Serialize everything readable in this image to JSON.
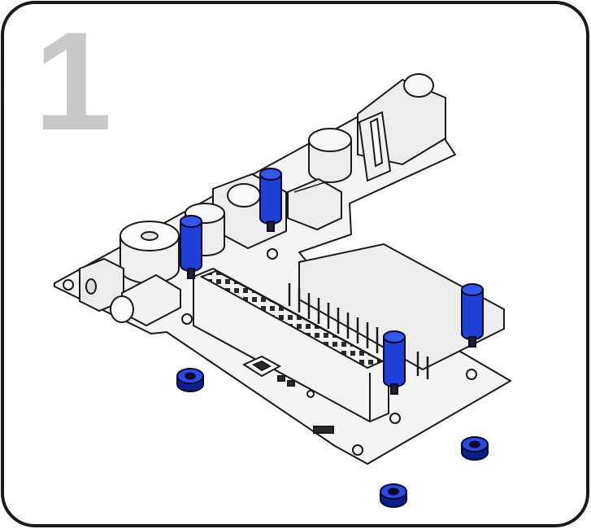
{
  "step": {
    "number": "1"
  },
  "colors": {
    "frame_stroke": "#1a1a1a",
    "board_fill": "#f4f4f4",
    "part_fill": "#ededed",
    "standoff_blue": "#1f3fd6",
    "standoff_dark": "#0d1f88",
    "step_number": "#c8c8c8"
  },
  "icons": [
    "pcb-board-icon",
    "dc-jack-icon",
    "capacitor-icon",
    "inductor-icon",
    "buzzer-icon",
    "pushbutton-icon",
    "led-icon",
    "pin-header-icon",
    "gpio-socket-icon",
    "standoff-icon",
    "hex-nut-icon"
  ]
}
